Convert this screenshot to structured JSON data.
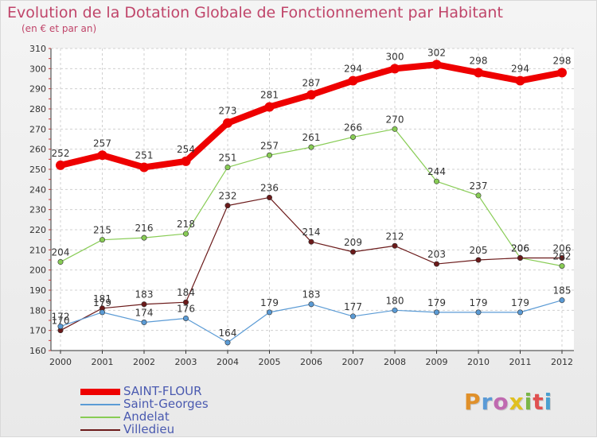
{
  "header": {
    "title": "Evolution de la Dotation Globale de Fonctionnement par Habitant",
    "subtitle": "(en € et par an)"
  },
  "logo": {
    "text": "Proxiti",
    "colors": [
      "#e0902a",
      "#5a9ad6",
      "#c06ab0",
      "#e0c020",
      "#7ab648",
      "#e05050",
      "#4aa0d0"
    ]
  },
  "chart_data": {
    "type": "line",
    "x": [
      "2000",
      "2001",
      "2002",
      "2003",
      "2004",
      "2005",
      "2006",
      "2007",
      "2008",
      "2009",
      "2010",
      "2011",
      "2012"
    ],
    "ylim": [
      160,
      310
    ],
    "yticks": [
      160,
      170,
      180,
      190,
      200,
      210,
      220,
      230,
      240,
      250,
      260,
      270,
      280,
      290,
      300,
      310
    ],
    "grid": true,
    "legend_position": "bottom-left",
    "series": [
      {
        "name": "SAINT-FLOUR",
        "color": "#ee0000",
        "values": [
          252,
          257,
          251,
          254,
          273,
          281,
          287,
          294,
          300,
          302,
          298,
          294,
          298
        ]
      },
      {
        "name": "Saint-Georges",
        "color": "#5b9bd5",
        "values": [
          172,
          179,
          174,
          176,
          164,
          179,
          183,
          177,
          180,
          179,
          179,
          179,
          185
        ]
      },
      {
        "name": "Andelat",
        "color": "#88cc55",
        "values": [
          204,
          215,
          216,
          218,
          251,
          257,
          261,
          266,
          270,
          244,
          237,
          206,
          202
        ]
      },
      {
        "name": "Villedieu",
        "color": "#6b1a1a",
        "values": [
          170,
          181,
          183,
          184,
          232,
          236,
          214,
          209,
          212,
          203,
          205,
          206,
          206
        ]
      }
    ],
    "data_labels": [
      {
        "series": 0,
        "labels": [
          "252",
          "257",
          "251",
          "254",
          "273",
          "281",
          "287",
          "294",
          "300",
          "302",
          "298",
          "294",
          "298"
        ]
      },
      {
        "series": 1,
        "labels": [
          "172",
          "179",
          "174",
          "176",
          "164",
          "179",
          "183",
          "177",
          "180",
          "179",
          "179",
          "179",
          "185"
        ]
      },
      {
        "series": 2,
        "labels": [
          "204",
          "215",
          "216",
          "218",
          "251",
          "257",
          "261",
          "266",
          "270",
          "244",
          "237",
          "206",
          "202"
        ]
      },
      {
        "series": 3,
        "labels": [
          "170",
          "181",
          "183",
          "184",
          "232",
          "236",
          "214",
          "209",
          "212",
          "203",
          "205",
          "206",
          "206"
        ]
      }
    ]
  }
}
